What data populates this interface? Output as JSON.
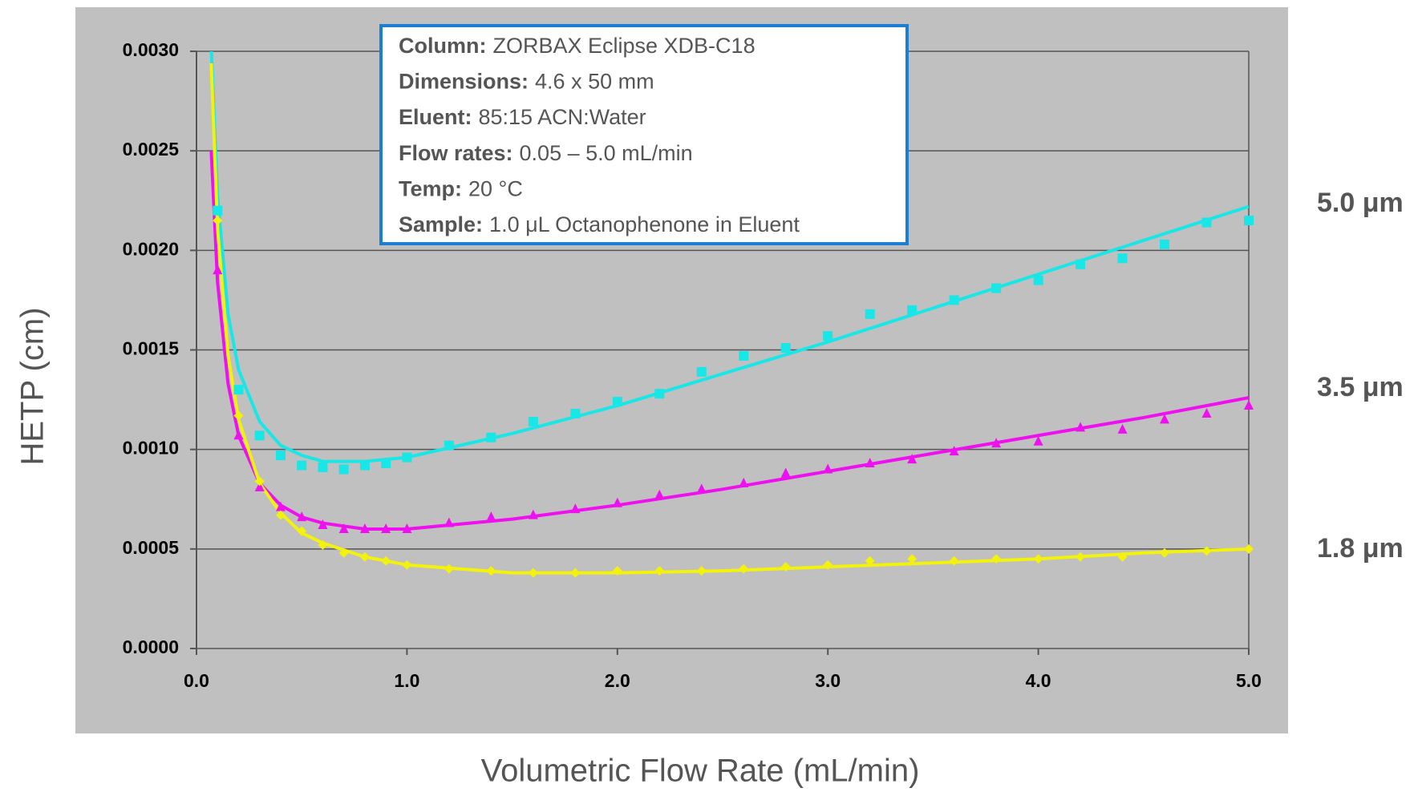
{
  "chart_data": {
    "type": "scatter",
    "xlabel": "Volumetric Flow Rate (mL/min)",
    "ylabel": "HETP (cm)",
    "xlim": [
      0,
      5
    ],
    "ylim": [
      0,
      0.003
    ],
    "xticks": [
      {
        "value": 0,
        "label": "0.0"
      },
      {
        "value": 1,
        "label": "1.0"
      },
      {
        "value": 2,
        "label": "2.0"
      },
      {
        "value": 3,
        "label": "3.0"
      },
      {
        "value": 4,
        "label": "4.0"
      },
      {
        "value": 5,
        "label": "5.0"
      }
    ],
    "yticks": [
      {
        "value": 0,
        "label": "0.0000"
      },
      {
        "value": 0.0005,
        "label": "0.0005"
      },
      {
        "value": 0.001,
        "label": "0.0010"
      },
      {
        "value": 0.0015,
        "label": "0.0015"
      },
      {
        "value": 0.002,
        "label": "0.0020"
      },
      {
        "value": 0.0025,
        "label": "0.0025"
      },
      {
        "value": 0.003,
        "label": "0.0030"
      }
    ],
    "grid": true,
    "annotation": [
      {
        "label": "Column:",
        "text": "ZORBAX Eclipse XDB-C18"
      },
      {
        "label": "Dimensions:",
        "text": "4.6 x 50 mm"
      },
      {
        "label": "Eluent:",
        "text": "85:15 ACN:Water"
      },
      {
        "label": "Flow rates:",
        "text": "0.05 – 5.0 mL/min"
      },
      {
        "label": "Temp:",
        "text": "20 °C"
      },
      {
        "label": "Sample:",
        "text": "1.0 μL Octanophenone in Eluent"
      }
    ],
    "x": [
      0.1,
      0.2,
      0.3,
      0.4,
      0.5,
      0.6,
      0.7,
      0.8,
      0.9,
      1.0,
      1.2,
      1.4,
      1.6,
      1.8,
      2.0,
      2.2,
      2.4,
      2.6,
      2.8,
      3.0,
      3.2,
      3.4,
      3.6,
      3.8,
      4.0,
      4.2,
      4.4,
      4.6,
      4.8,
      5.0
    ],
    "fit_x": [
      0.07,
      0.1,
      0.15,
      0.2,
      0.3,
      0.4,
      0.5,
      0.6,
      0.8,
      1.0,
      1.5,
      2,
      2.5,
      3,
      3.5,
      4,
      4.5,
      5
    ],
    "series": [
      {
        "name": "5.0 μm",
        "color": "#19e6e6",
        "marker": "square",
        "values": [
          0.0022,
          0.0013,
          0.00107,
          0.00097,
          0.00092,
          0.00091,
          0.0009,
          0.00092,
          0.00093,
          0.00096,
          0.00102,
          0.00106,
          0.00114,
          0.00118,
          0.00124,
          0.00128,
          0.00139,
          0.00147,
          0.00151,
          0.00157,
          0.00168,
          0.0017,
          0.00175,
          0.00181,
          0.00185,
          0.00193,
          0.00196,
          0.00203,
          0.00214,
          0.00215
        ],
        "fit": [
          0.00302,
          0.00227,
          0.00168,
          0.0014,
          0.00114,
          0.00102,
          0.00097,
          0.00094,
          0.00094,
          0.00096,
          0.00108,
          0.00122,
          0.00138,
          0.00154,
          0.00171,
          0.00188,
          0.00205,
          0.00222
        ]
      },
      {
        "name": "3.5 μm",
        "color": "#ee10ee",
        "marker": "triangle",
        "values": [
          0.0019,
          0.00107,
          0.00081,
          0.00071,
          0.00066,
          0.00062,
          0.0006,
          0.0006,
          0.0006,
          0.0006,
          0.00063,
          0.00066,
          0.00067,
          0.0007,
          0.00073,
          0.00077,
          0.0008,
          0.00083,
          0.00088,
          0.0009,
          0.00093,
          0.00095,
          0.00099,
          0.00103,
          0.00104,
          0.00111,
          0.0011,
          0.00115,
          0.00118,
          0.00122
        ],
        "fit": [
          0.0025,
          0.00184,
          0.00133,
          0.00107,
          0.00083,
          0.00072,
          0.00066,
          0.00063,
          0.0006,
          0.0006,
          0.00065,
          0.00072,
          0.0008,
          0.00089,
          0.00098,
          0.00107,
          0.00116,
          0.00126
        ]
      },
      {
        "name": "1.8 μm",
        "color": "#f2f20a",
        "marker": "diamond",
        "values": [
          0.00215,
          0.00117,
          0.00084,
          0.00067,
          0.00059,
          0.00052,
          0.00048,
          0.00046,
          0.00044,
          0.00042,
          0.0004,
          0.00039,
          0.00038,
          0.00038,
          0.00039,
          0.00039,
          0.00039,
          0.0004,
          0.00041,
          0.00042,
          0.00044,
          0.00045,
          0.00044,
          0.00045,
          0.00045,
          0.00046,
          0.00046,
          0.00048,
          0.00049,
          0.0005
        ],
        "fit": [
          0.00294,
          0.00211,
          0.00147,
          0.00115,
          0.00083,
          0.00068,
          0.00058,
          0.00053,
          0.00046,
          0.00042,
          0.00038,
          0.00038,
          0.00039,
          0.00041,
          0.00043,
          0.00045,
          0.00048,
          0.0005
        ]
      }
    ]
  }
}
